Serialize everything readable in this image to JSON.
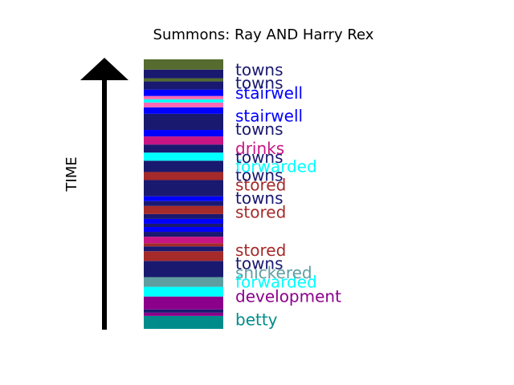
{
  "chart_data": {
    "type": "bar",
    "title": "Summons: Ray AND Harry Rex",
    "ylabel": "TIME",
    "colors": {
      "towns": "#191970",
      "stairwell": "#0000ff",
      "drinks": "#c71585",
      "forwarded": "#00ffff",
      "stored": "#a52a2a",
      "snickered": "#5f9ea0",
      "development": "#8b008b",
      "betty": "#008b8b",
      "olive": "#556b2f",
      "pink": "#ff69b4"
    },
    "bands": [
      {
        "y0": 0.0,
        "y1": 0.048,
        "color": "#008b8b"
      },
      {
        "y0": 0.048,
        "y1": 0.06,
        "color": "#8b008b"
      },
      {
        "y0": 0.06,
        "y1": 0.072,
        "color": "#191970"
      },
      {
        "y0": 0.072,
        "y1": 0.12,
        "color": "#8b008b"
      },
      {
        "y0": 0.12,
        "y1": 0.156,
        "color": "#00ffff"
      },
      {
        "y0": 0.156,
        "y1": 0.192,
        "color": "#5f9ea0"
      },
      {
        "y0": 0.192,
        "y1": 0.252,
        "color": "#191970"
      },
      {
        "y0": 0.252,
        "y1": 0.288,
        "color": "#a52a2a"
      },
      {
        "y0": 0.288,
        "y1": 0.306,
        "color": "#191970"
      },
      {
        "y0": 0.306,
        "y1": 0.318,
        "color": "#a52a2a"
      },
      {
        "y0": 0.318,
        "y1": 0.342,
        "color": "#c71585"
      },
      {
        "y0": 0.342,
        "y1": 0.36,
        "color": "#191970"
      },
      {
        "y0": 0.36,
        "y1": 0.378,
        "color": "#0000ff"
      },
      {
        "y0": 0.378,
        "y1": 0.39,
        "color": "#191970"
      },
      {
        "y0": 0.39,
        "y1": 0.408,
        "color": "#0000ff"
      },
      {
        "y0": 0.408,
        "y1": 0.426,
        "color": "#191970"
      },
      {
        "y0": 0.426,
        "y1": 0.456,
        "color": "#a52a2a"
      },
      {
        "y0": 0.456,
        "y1": 0.474,
        "color": "#191970"
      },
      {
        "y0": 0.474,
        "y1": 0.492,
        "color": "#0000ff"
      },
      {
        "y0": 0.492,
        "y1": 0.552,
        "color": "#191970"
      },
      {
        "y0": 0.552,
        "y1": 0.582,
        "color": "#a52a2a"
      },
      {
        "y0": 0.582,
        "y1": 0.624,
        "color": "#191970"
      },
      {
        "y0": 0.624,
        "y1": 0.654,
        "color": "#00ffff"
      },
      {
        "y0": 0.654,
        "y1": 0.684,
        "color": "#191970"
      },
      {
        "y0": 0.684,
        "y1": 0.714,
        "color": "#c71585"
      },
      {
        "y0": 0.714,
        "y1": 0.738,
        "color": "#0000ff"
      },
      {
        "y0": 0.738,
        "y1": 0.798,
        "color": "#191970"
      },
      {
        "y0": 0.798,
        "y1": 0.822,
        "color": "#0000ff"
      },
      {
        "y0": 0.822,
        "y1": 0.84,
        "color": "#ff69b4"
      },
      {
        "y0": 0.84,
        "y1": 0.852,
        "color": "#00ffff"
      },
      {
        "y0": 0.852,
        "y1": 0.864,
        "color": "#ff69b4"
      },
      {
        "y0": 0.864,
        "y1": 0.888,
        "color": "#0000ff"
      },
      {
        "y0": 0.888,
        "y1": 0.918,
        "color": "#191970"
      },
      {
        "y0": 0.918,
        "y1": 0.93,
        "color": "#556b2f"
      },
      {
        "y0": 0.93,
        "y1": 0.962,
        "color": "#191970"
      },
      {
        "y0": 0.962,
        "y1": 1.0,
        "color": "#556b2f"
      }
    ],
    "labels": [
      {
        "text": "betty",
        "y": 0.03,
        "color": "#008b8b"
      },
      {
        "text": "development",
        "y": 0.116,
        "color": "#8b008b"
      },
      {
        "text": "forwarded",
        "y": 0.17,
        "color": "#00ffff"
      },
      {
        "text": "snickered",
        "y": 0.204,
        "color": "#5f9ea0"
      },
      {
        "text": "towns",
        "y": 0.238,
        "color": "#191970"
      },
      {
        "text": "stored",
        "y": 0.287,
        "color": "#a52a2a"
      },
      {
        "text": "stored",
        "y": 0.428,
        "color": "#a52a2a"
      },
      {
        "text": "towns",
        "y": 0.48,
        "color": "#191970"
      },
      {
        "text": "stored",
        "y": 0.53,
        "color": "#a52a2a"
      },
      {
        "text": "towns",
        "y": 0.565,
        "color": "#191970"
      },
      {
        "text": "forwarded",
        "y": 0.598,
        "color": "#00ffff"
      },
      {
        "text": "towns",
        "y": 0.632,
        "color": "#191970"
      },
      {
        "text": "drinks",
        "y": 0.665,
        "color": "#c71585"
      },
      {
        "text": "towns",
        "y": 0.737,
        "color": "#191970"
      },
      {
        "text": "stairwell",
        "y": 0.786,
        "color": "#0000ff"
      },
      {
        "text": "stairwell",
        "y": 0.871,
        "color": "#0000ff"
      },
      {
        "text": "towns",
        "y": 0.907,
        "color": "#191970"
      },
      {
        "text": "towns",
        "y": 0.957,
        "color": "#191970"
      }
    ]
  }
}
